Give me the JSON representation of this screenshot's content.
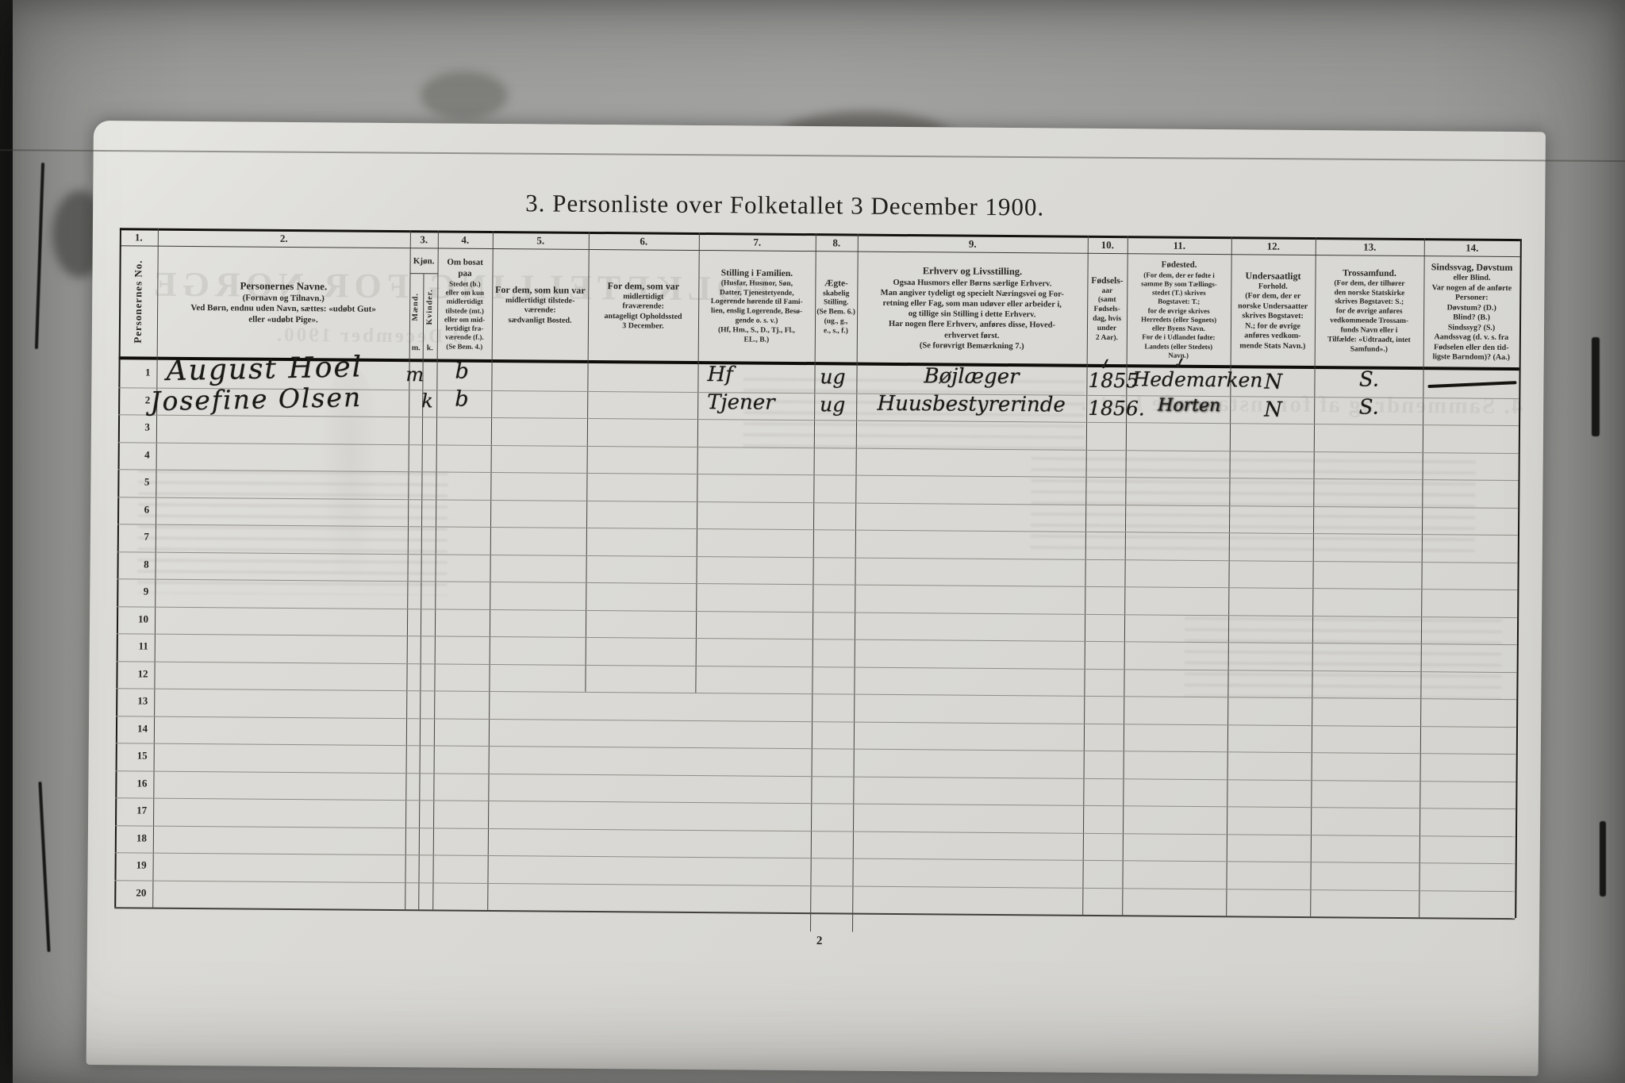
{
  "title": "3. Personliste over Folketallet 3 December 1900.",
  "page_number": "2",
  "ghosts": [
    "FOLKETELLING FOR NORGE",
    "3 December 1900.",
    "4. Sammendrag af foranstaaende Liste."
  ],
  "table": {
    "columns": [
      {
        "id": "c1",
        "num": "1.",
        "vertical": "Personernes No."
      },
      {
        "id": "c2",
        "num": "2.",
        "lines": [
          "Personernes Navne.",
          "(Fornavn og Tilnavn.)",
          "Ved Børn, endnu uden Navn, sættes: «udøbt Gut»",
          "eller «udøbt Pige»."
        ]
      },
      {
        "id": "c3",
        "num": "3.",
        "title": "Kjøn.",
        "sub_left": "Mænd.",
        "sub_right": "Kvinder.",
        "abbr_left": "m.",
        "abbr_right": "k."
      },
      {
        "id": "c4",
        "num": "4.",
        "lines": [
          "Om bosat paa",
          "Stedet (b.)",
          "eller om kun",
          "midlertidigt",
          "tilstede (mt.)",
          "eller om mid-",
          "lertidigt fra-",
          "værende (f.).",
          "(Se Bem. 4.)"
        ]
      },
      {
        "id": "c5",
        "num": "5.",
        "lines": [
          "For dem, som kun var",
          "midlertidigt tilstede-",
          "værende:",
          "sædvanligt Bosted."
        ]
      },
      {
        "id": "c6",
        "num": "6.",
        "lines": [
          "For dem, som var",
          "midlertidigt",
          "fraværende:",
          "antageligt Opholdssted",
          "3 December."
        ]
      },
      {
        "id": "c7",
        "num": "7.",
        "lines": [
          "Stilling i Familien.",
          "(Husfar, Husmor, Søn,",
          "Datter, Tjenestetyende,",
          "Logerende hørende til Fami-",
          "lien, enslig Logerende, Besø-",
          "gende o. s. v.)",
          "(Hf, Hm., S., D., Tj., Fl.,",
          "EL., B.)"
        ]
      },
      {
        "id": "c8",
        "num": "8.",
        "lines": [
          "Ægte-",
          "skabelig",
          "Stilling.",
          "(Se Bem. 6.)",
          "(ug., g.,",
          "e., s., f.)"
        ]
      },
      {
        "id": "c9",
        "num": "9.",
        "lines": [
          "Erhverv og Livsstilling.",
          "Ogsaa Husmors eller Børns særlige Erhverv.",
          "Man angiver tydeligt og specielt Næringsvei og For-",
          "retning eller Fag, som man udøver eller arbeider i,",
          "og tillige sin Stilling i dette Erhverv.",
          "Har nogen flere Erhverv, anføres disse, Hoved-",
          "erhvervet først.",
          "(Se forøvrigt Bemærkning 7.)"
        ]
      },
      {
        "id": "c10",
        "num": "10.",
        "lines": [
          "Fødsels-",
          "aar",
          "(samt",
          "Fødsels-",
          "dag, hvis",
          "under",
          "2 Aar)."
        ]
      },
      {
        "id": "c11",
        "num": "11.",
        "lines": [
          "Fødested.",
          "(For dem, der er fødte i",
          "samme By som Tællings-",
          "stedet (T.) skrives",
          "Bogstavet: T.;",
          "for de øvrige skrives",
          "Herredets (eller Sognets)",
          "eller Byens Navn.",
          "For de i Udlandet fødte:",
          "Landets (eller Stedets)",
          "Navn.)"
        ]
      },
      {
        "id": "c12",
        "num": "12.",
        "lines": [
          "Undersaatligt",
          "Forhold.",
          "(For dem, der er",
          "norske Undersaatter",
          "skrives Bogstavet:",
          "N.; for de øvrige",
          "anføres vedkom-",
          "mende Stats Navn.)"
        ]
      },
      {
        "id": "c13",
        "num": "13.",
        "lines": [
          "Trossamfund.",
          "(For dem, der tilhører",
          "den norske Statskirke",
          "skrives Bogstavet: S.;",
          "for de øvrige anføres",
          "vedkommende Trossam-",
          "funds Navn eller i",
          "Tilfælde: «Udtraadt, intet",
          "Samfund».)"
        ]
      },
      {
        "id": "c14",
        "num": "14.",
        "lines": [
          "Sindssvag, Døvstum",
          "eller Blind.",
          "Var nogen af de anførte",
          "Personer:",
          "Døvstum? (D.)",
          "Blind? (B.)",
          "Sindssyg? (S.)",
          "Aandssvag (d. v. s. fra",
          "Fødselen eller den tid-",
          "ligste Barndom)? (Aa.)"
        ]
      }
    ],
    "rows": [
      {
        "no": "1",
        "name": "August Hoel",
        "m": "m",
        "bosat": "b",
        "stilling": "Hf",
        "egteskab": "ug",
        "erhverv": "Bøjlæger",
        "aar": "1855",
        "aar_mark": "✓",
        "sted": "Hedemarken",
        "sted_mark": "✓",
        "unders": "N",
        "tros": "S.",
        "sinds": "—"
      },
      {
        "no": "2",
        "name": "Josefine Olsen",
        "k": "k",
        "bosat": "b",
        "stilling": "Tjener",
        "egteskab": "ug",
        "erhverv": "Huusbestyrerinde",
        "aar": "1856.",
        "sted": "Horten",
        "unders": "N",
        "tros": "S."
      },
      {
        "no": "3"
      },
      {
        "no": "4"
      },
      {
        "no": "5"
      },
      {
        "no": "6"
      },
      {
        "no": "7"
      },
      {
        "no": "8"
      },
      {
        "no": "9"
      },
      {
        "no": "10"
      },
      {
        "no": "11"
      },
      {
        "no": "12"
      },
      {
        "no": "13"
      },
      {
        "no": "14"
      },
      {
        "no": "15"
      },
      {
        "no": "16"
      },
      {
        "no": "17"
      },
      {
        "no": "18"
      },
      {
        "no": "19"
      },
      {
        "no": "20"
      }
    ]
  }
}
